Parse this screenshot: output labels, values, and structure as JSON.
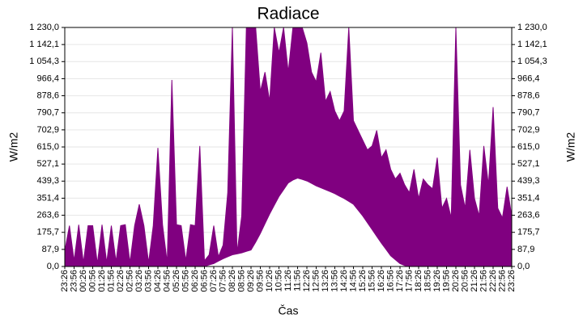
{
  "chart_data": {
    "type": "line",
    "title": "Radiace",
    "ylabel": "W/m2",
    "y2label": "W/m2",
    "xlabel": "Čas",
    "categories": [
      "23:26",
      null,
      "23:56",
      null,
      "00:26",
      null,
      "00:56",
      null,
      "01:26",
      null,
      "01:56",
      null,
      "02:26",
      null,
      "02:56",
      null,
      "03:26",
      null,
      "03:56",
      null,
      "04:26",
      null,
      "04:56",
      null,
      "05:26",
      null,
      "05:56",
      null,
      "06:26",
      null,
      "06:56",
      null,
      "07:26",
      null,
      "07:56",
      null,
      "08:26",
      null,
      "08:56",
      null,
      "09:26",
      null,
      "09:56",
      null,
      "10:26",
      null,
      "10:56",
      null,
      "11:26",
      null,
      "11:56",
      null,
      "12:26",
      null,
      "12:56",
      null,
      "13:26",
      null,
      "13:56",
      null,
      "14:26",
      null,
      "14:56",
      null,
      "15:26",
      null,
      "15:56",
      null,
      "16:26",
      null,
      "16:56",
      null,
      "17:26",
      null,
      "17:56",
      null,
      "18:26",
      null,
      "18:56",
      null,
      "19:26",
      null,
      "19:56",
      null,
      "20:26",
      null,
      "20:56",
      null,
      "21:26",
      null,
      "21:56",
      null,
      "22:26",
      null,
      "22:56",
      null,
      "23:26"
    ],
    "series": [
      {
        "color": "#800080",
        "fill": "#800080",
        "values": [
          80,
          210,
          30,
          215,
          20,
          210,
          210,
          15,
          215,
          20,
          210,
          25,
          210,
          215,
          20,
          210,
          320,
          210,
          20,
          210,
          610,
          215,
          20,
          960,
          215,
          210,
          30,
          215,
          210,
          620,
          30,
          60,
          210,
          50,
          110,
          380,
          1230,
          70,
          260,
          1230,
          1230,
          1230,
          900,
          1000,
          850,
          1230,
          1100,
          1230,
          1000,
          1230,
          1230,
          1230,
          1150,
          1000,
          950,
          1100,
          850,
          900,
          800,
          750,
          800,
          1230,
          750,
          700,
          650,
          600,
          620,
          700,
          560,
          600,
          500,
          450,
          480,
          420,
          380,
          500,
          350,
          450,
          420,
          400,
          560,
          300,
          350,
          250,
          1230,
          420,
          300,
          600,
          350,
          260,
          620,
          420,
          820,
          300,
          250,
          410,
          260
        ]
      },
      {
        "color": "#800080",
        "fill": "#ffffff",
        "values": [
          0,
          0,
          0,
          0,
          0,
          0,
          0,
          0,
          0,
          0,
          0,
          0,
          0,
          0,
          0,
          0,
          0,
          0,
          0,
          0,
          0,
          0,
          0,
          0,
          0,
          0,
          0,
          0,
          0,
          0,
          0,
          8,
          15,
          28,
          40,
          50,
          60,
          65,
          70,
          78,
          85,
          125,
          170,
          220,
          270,
          315,
          360,
          395,
          430,
          445,
          455,
          448,
          440,
          428,
          415,
          405,
          395,
          385,
          375,
          362,
          350,
          335,
          320,
          290,
          260,
          225,
          190,
          155,
          120,
          88,
          55,
          35,
          15,
          5,
          0,
          0,
          0,
          0,
          0,
          0,
          0,
          0,
          0,
          0,
          0,
          0,
          0,
          0,
          0,
          0,
          0,
          0,
          0,
          0,
          0,
          0,
          0
        ]
      }
    ],
    "ylim": [
      0,
      1230
    ],
    "yticks": [
      {
        "value": 0,
        "label": "0,0"
      },
      {
        "value": 87.9,
        "label": "87,9"
      },
      {
        "value": 175.7,
        "label": "175,7"
      },
      {
        "value": 263.6,
        "label": "263,6"
      },
      {
        "value": 351.4,
        "label": "351,4"
      },
      {
        "value": 439.3,
        "label": "439,3"
      },
      {
        "value": 527.1,
        "label": "527,1"
      },
      {
        "value": 615,
        "label": "615,0"
      },
      {
        "value": 702.9,
        "label": "702,9"
      },
      {
        "value": 790.7,
        "label": "790,7"
      },
      {
        "value": 878.6,
        "label": "878,6"
      },
      {
        "value": 966.4,
        "label": "966,4"
      },
      {
        "value": 1054.3,
        "label": "1 054,3"
      },
      {
        "value": 1142.1,
        "label": "1 142,1"
      },
      {
        "value": 1230,
        "label": "1 230,0"
      }
    ],
    "y2lim": [
      0,
      1230
    ],
    "y2ticks": [
      {
        "value": 0,
        "label": "0,0"
      },
      {
        "value": 87.9,
        "label": "87,9"
      },
      {
        "value": 175.7,
        "label": "175,7"
      },
      {
        "value": 263.6,
        "label": "263,6"
      },
      {
        "value": 351.4,
        "label": "351,4"
      },
      {
        "value": 439.3,
        "label": "439,3"
      },
      {
        "value": 527.1,
        "label": "527,1"
      },
      {
        "value": 615,
        "label": "615,0"
      },
      {
        "value": 702.9,
        "label": "702,9"
      },
      {
        "value": 790.7,
        "label": "790,7"
      },
      {
        "value": 878.6,
        "label": "878,6"
      },
      {
        "value": 966.4,
        "label": "966,4"
      },
      {
        "value": 1054.3,
        "label": "1 054,3"
      },
      {
        "value": 1142.1,
        "label": "1 142,1"
      },
      {
        "value": 1230,
        "label": "1 230,0"
      }
    ],
    "grid": true
  }
}
